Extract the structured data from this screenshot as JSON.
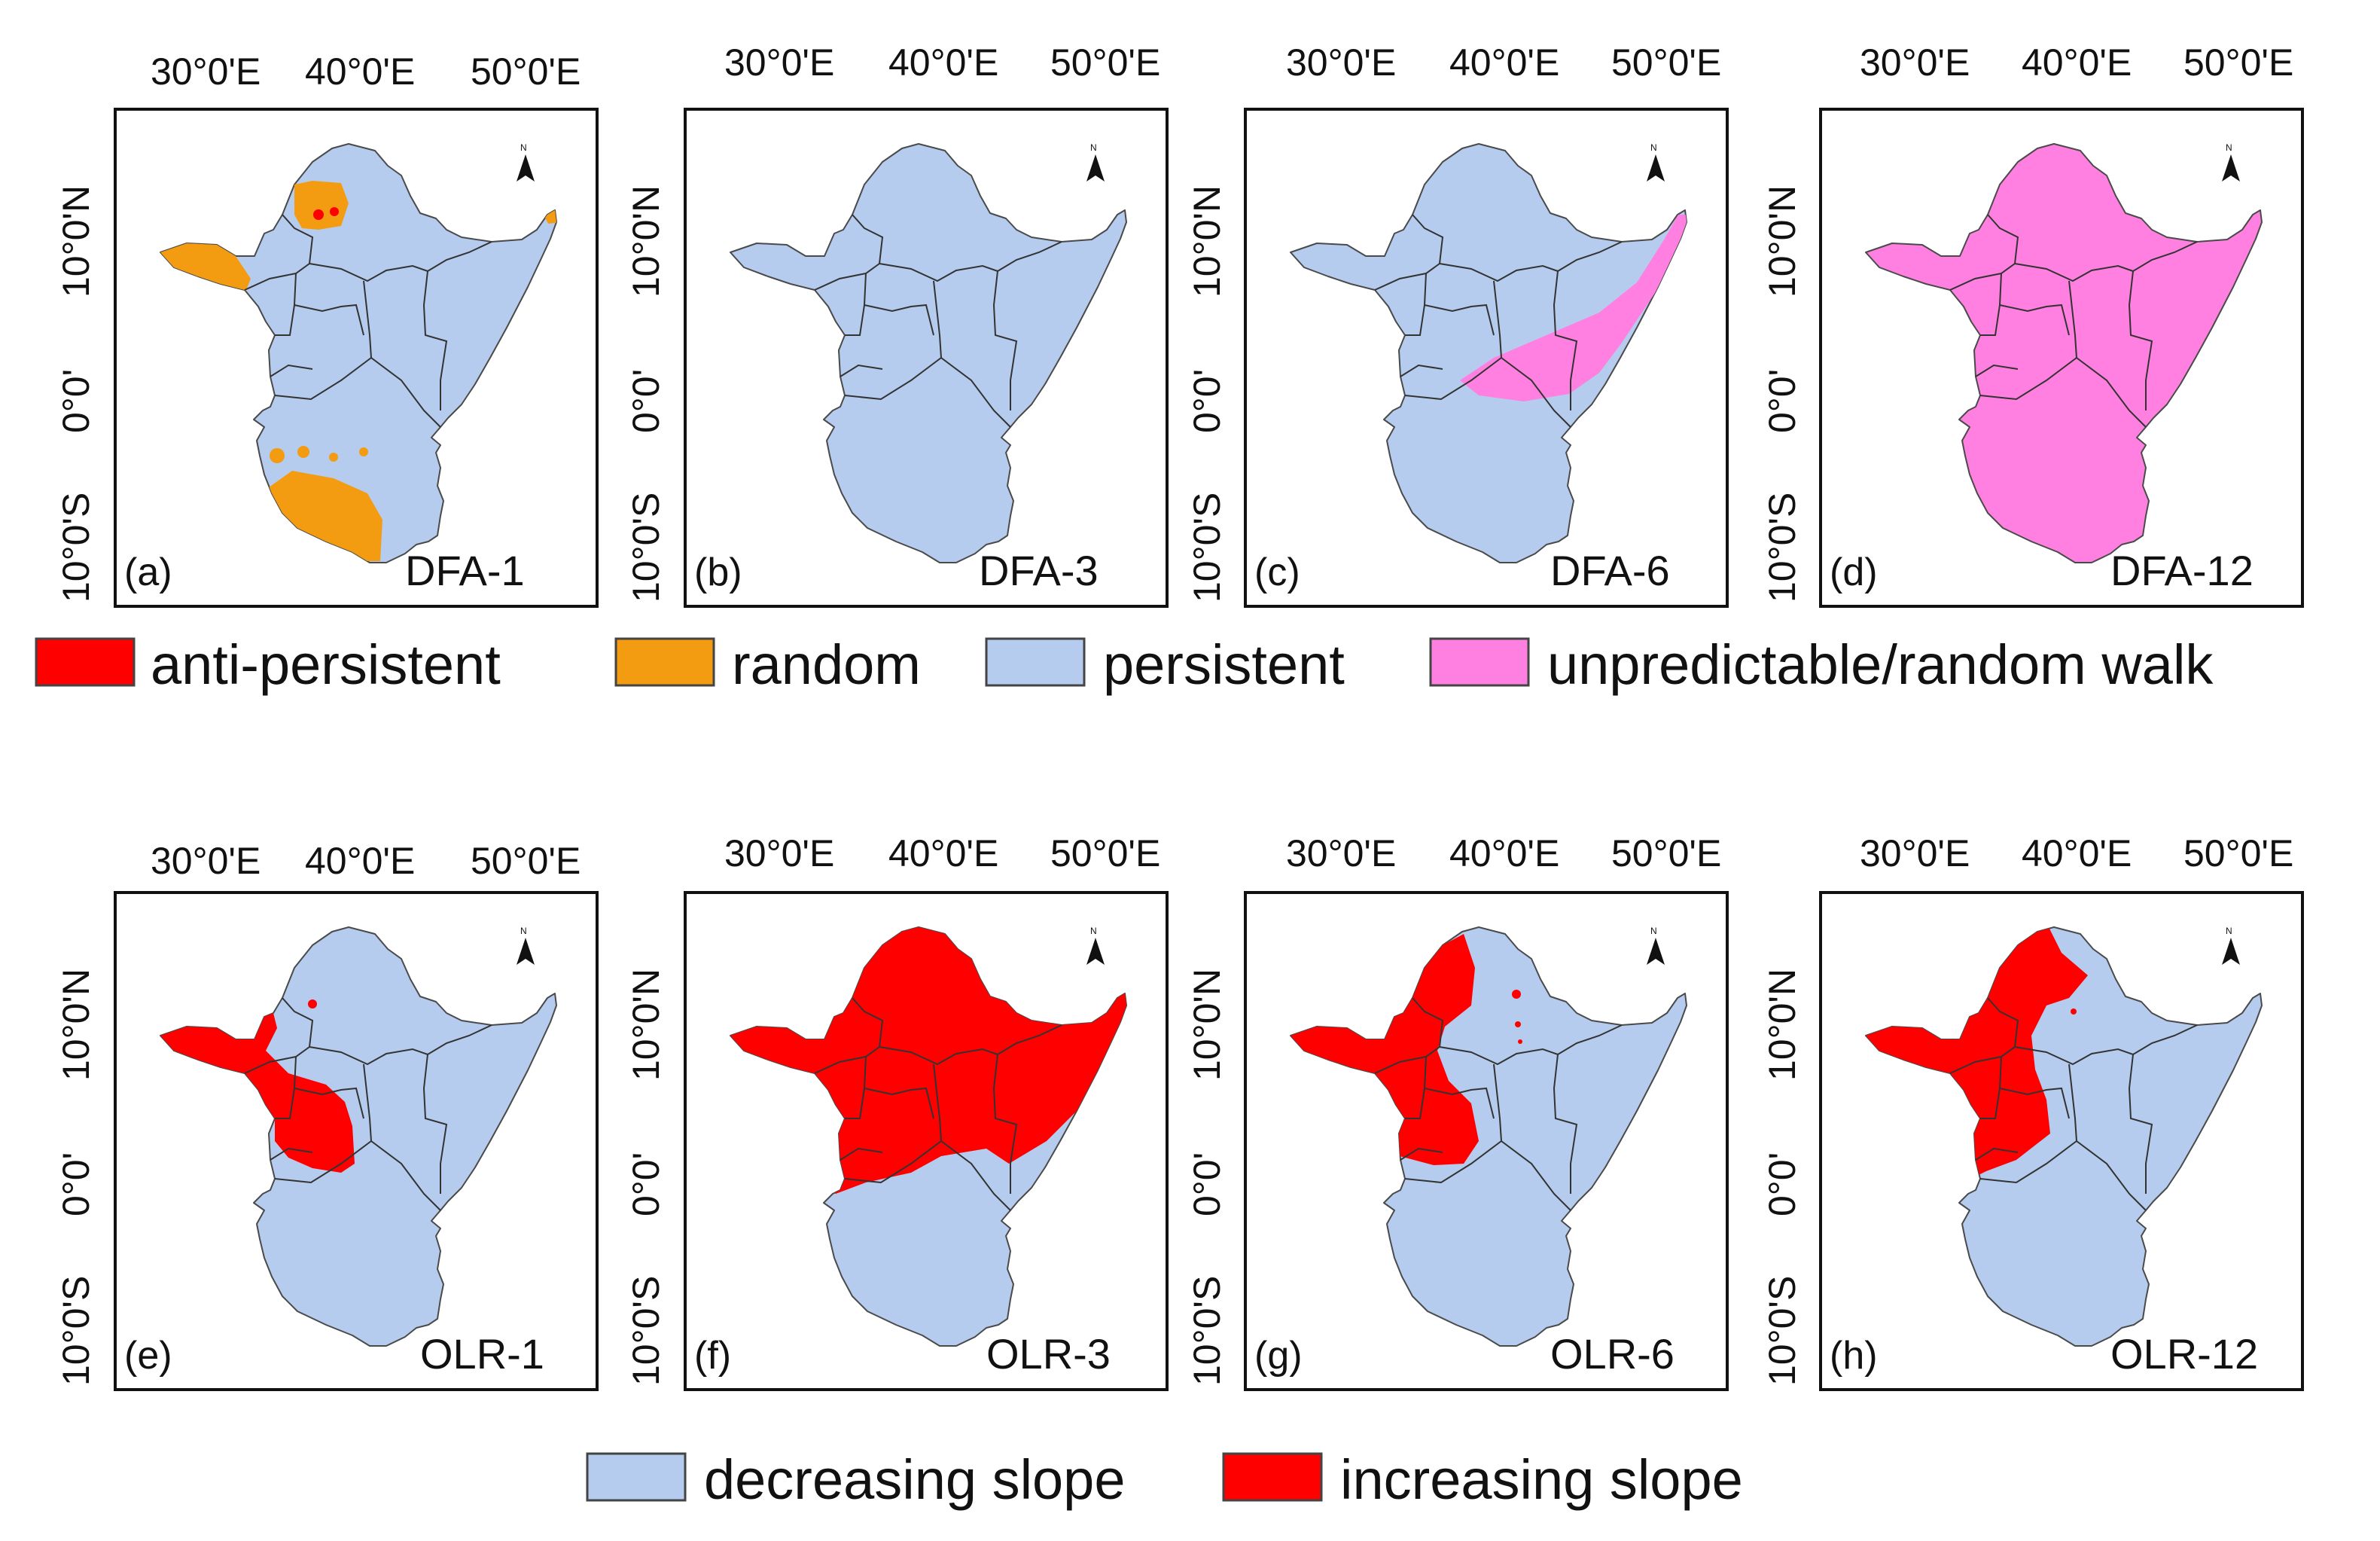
{
  "colors": {
    "anti_persistent": "#ff0000",
    "random": "#f39c12",
    "persistent": "#b5ccee",
    "unpredictable": "#ff80e0",
    "decreasing_slope": "#b5ccee",
    "increasing_slope": "#ff0000"
  },
  "axis": {
    "top_ticks": [
      "30°0'E",
      "40°0'E",
      "50°0'E"
    ],
    "left_ticks": [
      "10°0'N",
      "0°0'",
      "10°0'S"
    ]
  },
  "north_arrow": {
    "letter": "N"
  },
  "panels": [
    {
      "letter": "(a)",
      "title": "DFA-1",
      "base": "persistent",
      "overlays": [
        "random",
        "anti-persistent"
      ]
    },
    {
      "letter": "(b)",
      "title": "DFA-3",
      "base": "persistent",
      "overlays": []
    },
    {
      "letter": "(c)",
      "title": "DFA-6",
      "base": "persistent",
      "overlays": [
        "unpredictable"
      ]
    },
    {
      "letter": "(d)",
      "title": "DFA-12",
      "base": "unpredictable",
      "overlays": []
    },
    {
      "letter": "(e)",
      "title": "OLR-1",
      "base": "decreasing_slope",
      "overlays": [
        "increasing_slope"
      ]
    },
    {
      "letter": "(f)",
      "title": "OLR-3",
      "base": "decreasing_slope",
      "overlays": [
        "increasing_slope"
      ]
    },
    {
      "letter": "(g)",
      "title": "OLR-6",
      "base": "decreasing_slope",
      "overlays": [
        "increasing_slope"
      ]
    },
    {
      "letter": "(h)",
      "title": "OLR-12",
      "base": "decreasing_slope",
      "overlays": [
        "increasing_slope"
      ]
    }
  ],
  "legend_top": [
    {
      "label": "anti-persistent",
      "color": "#ff0000"
    },
    {
      "label": "random",
      "color": "#f39c12"
    },
    {
      "label": "persistent",
      "color": "#b5ccee"
    },
    {
      "label": "unpredictable/random walk",
      "color": "#ff80e0"
    }
  ],
  "legend_bottom": [
    {
      "label": "decreasing slope",
      "color": "#b5ccee"
    },
    {
      "label": "increasing slope",
      "color": "#ff0000"
    }
  ]
}
